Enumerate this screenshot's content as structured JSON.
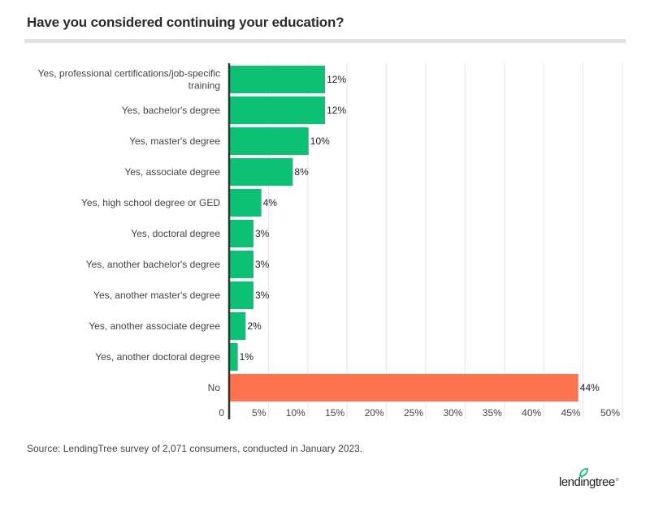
{
  "header": {
    "title": "Have you considered continuing your education?"
  },
  "footer": {
    "source": "Source: LendingTree survey of 2,071 consumers, conducted in January 2023.",
    "logo_text": "lendingtree",
    "logo_mark": "®"
  },
  "colors": {
    "yes_bar": "#0cc174",
    "no_bar": "#ff7350",
    "grid": "#e6e6e6",
    "axis": "#333333"
  },
  "chart_data": {
    "type": "bar",
    "orientation": "horizontal",
    "title": "Have you considered continuing your education?",
    "xlabel": "",
    "ylabel": "",
    "xlim": [
      0,
      50
    ],
    "grid": true,
    "x_ticks": [
      "0",
      "5%",
      "10%",
      "15%",
      "20%",
      "25%",
      "30%",
      "35%",
      "40%",
      "45%",
      "50%"
    ],
    "x_tick_values": [
      0,
      5,
      10,
      15,
      20,
      25,
      30,
      35,
      40,
      45,
      50
    ],
    "categories": [
      [
        "Yes, professional certifications/job-specific",
        "training"
      ],
      [
        "Yes, bachelor's degree"
      ],
      [
        "Yes, master's degree"
      ],
      [
        "Yes, associate degree"
      ],
      [
        "Yes, high school degree or GED"
      ],
      [
        "Yes, doctoral degree"
      ],
      [
        "Yes, another bachelor's degree"
      ],
      [
        "Yes, another master's degree"
      ],
      [
        "Yes, another associate degree"
      ],
      [
        "Yes, another doctoral degree"
      ],
      [
        "No"
      ]
    ],
    "values": [
      12.2,
      12.2,
      10.1,
      8.1,
      4.1,
      3.1,
      3.1,
      3.1,
      2.1,
      1.1,
      44.4
    ],
    "data_labels": [
      "12%",
      "12%",
      "10%",
      "8%",
      "4%",
      "3%",
      "3%",
      "3%",
      "2%",
      "1%",
      "44%"
    ],
    "bar_groups": [
      "yes",
      "yes",
      "yes",
      "yes",
      "yes",
      "yes",
      "yes",
      "yes",
      "yes",
      "yes",
      "no"
    ]
  }
}
